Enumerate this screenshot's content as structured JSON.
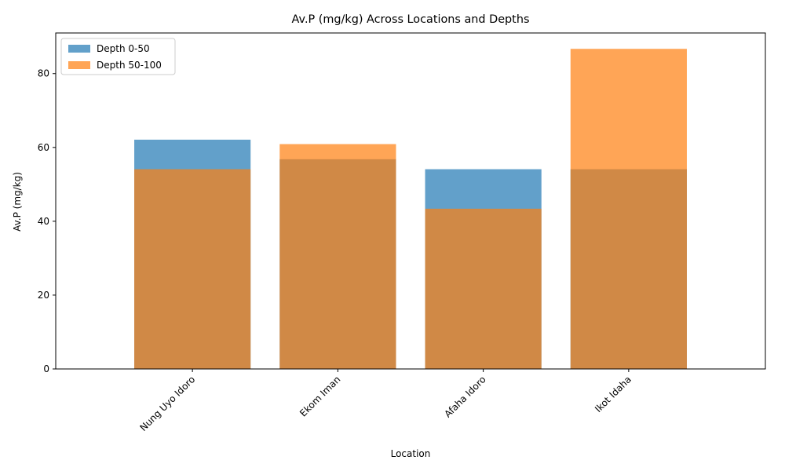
{
  "chart_data": {
    "type": "bar",
    "title": "Av.P (mg/kg) Across Locations and Depths",
    "xlabel": "Location",
    "ylabel": "Av.P (mg/kg)",
    "categories": [
      "Nung Uyo Idoro",
      "Ekom Iman",
      "Afaha Idoro",
      "Ikot Idaha"
    ],
    "series": [
      {
        "name": "Depth 0-50",
        "values": [
          62.1,
          56.8,
          54.1,
          54.1
        ],
        "color": "#1f77b4",
        "opacity": 0.7
      },
      {
        "name": "Depth 50-100",
        "values": [
          54.1,
          60.9,
          43.4,
          86.7
        ],
        "color": "#ff7f0e",
        "opacity": 0.7
      }
    ],
    "ylim": [
      0,
      91
    ],
    "yticks": [
      0,
      20,
      40,
      60,
      80
    ],
    "grid": false,
    "legend_position": "top-left",
    "overlay": true
  }
}
